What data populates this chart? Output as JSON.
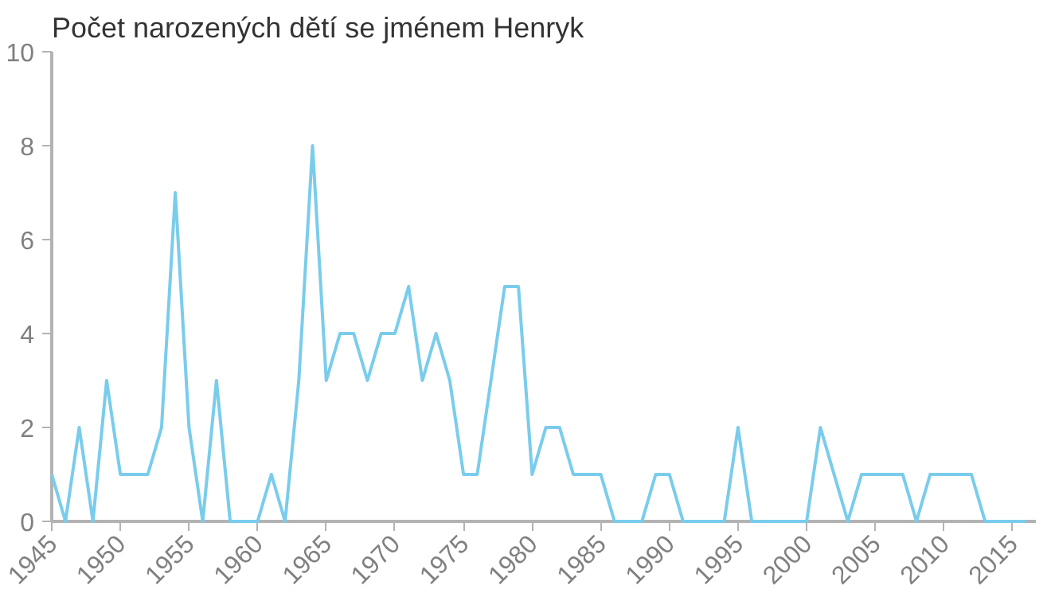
{
  "chart_data": {
    "type": "line",
    "title": "Počet narozených dětí se jménem Henryk",
    "x": [
      1945,
      1946,
      1947,
      1948,
      1949,
      1950,
      1951,
      1952,
      1953,
      1954,
      1955,
      1956,
      1957,
      1958,
      1959,
      1960,
      1961,
      1962,
      1963,
      1964,
      1965,
      1966,
      1967,
      1968,
      1969,
      1970,
      1971,
      1972,
      1973,
      1974,
      1975,
      1976,
      1977,
      1978,
      1979,
      1980,
      1981,
      1982,
      1983,
      1984,
      1985,
      1986,
      1987,
      1988,
      1989,
      1990,
      1991,
      1992,
      1993,
      1994,
      1995,
      1996,
      1997,
      1998,
      1999,
      2000,
      2001,
      2002,
      2003,
      2004,
      2005,
      2006,
      2007,
      2008,
      2009,
      2010,
      2011,
      2012,
      2013,
      2014,
      2015,
      2016
    ],
    "series": [
      {
        "color": "#7accec",
        "values": [
          1,
          0,
          2,
          0,
          3,
          1,
          1,
          1,
          2,
          7,
          2,
          0,
          3,
          0,
          0,
          0,
          1,
          0,
          3,
          8,
          3,
          4,
          4,
          3,
          4,
          4,
          5,
          3,
          4,
          3,
          1,
          1,
          3,
          5,
          5,
          1,
          2,
          2,
          1,
          1,
          1,
          0,
          0,
          0,
          1,
          1,
          0,
          0,
          0,
          0,
          2,
          0,
          0,
          0,
          0,
          0,
          2,
          1,
          0,
          1,
          1,
          1,
          1,
          0,
          1,
          1,
          1,
          1,
          0,
          0,
          0,
          0
        ]
      }
    ],
    "xlim": [
      1945,
      2016.7
    ],
    "ylim": [
      0,
      10
    ],
    "xticks": [
      1945,
      1950,
      1955,
      1960,
      1965,
      1970,
      1975,
      1980,
      1985,
      1990,
      1995,
      2000,
      2005,
      2010,
      2015
    ],
    "yticks": [
      0,
      2,
      4,
      6,
      8,
      10
    ],
    "grid": false,
    "marker": "none",
    "line_style": "solid"
  }
}
